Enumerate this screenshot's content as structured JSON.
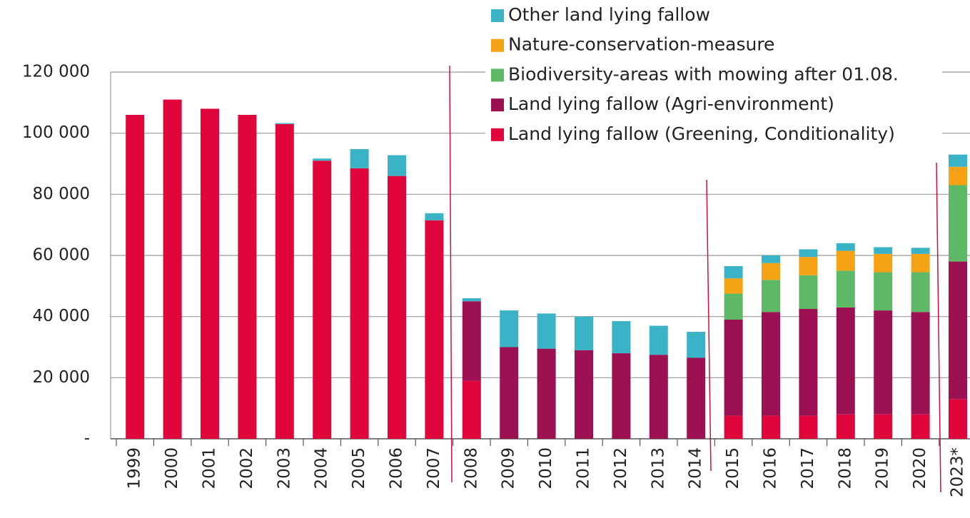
{
  "chart_data": {
    "type": "stacked_bar",
    "categories": [
      "1999",
      "2000",
      "2001",
      "2002",
      "2003",
      "2004",
      "2005",
      "2006",
      "2007",
      "2008",
      "2009",
      "2010",
      "2011",
      "2012",
      "2013",
      "2014",
      "2015",
      "2016",
      "2017",
      "2018",
      "2019",
      "2020",
      "2023*"
    ],
    "series": [
      {
        "name": "Land lying fallow (Greening, Conditionality)",
        "color": "#e0063c",
        "values": [
          106000,
          111000,
          108000,
          106000,
          103000,
          91000,
          88500,
          86000,
          71500,
          19000,
          0,
          0,
          0,
          0,
          0,
          0,
          7500,
          7500,
          7500,
          8000,
          8000,
          8000,
          13000
        ]
      },
      {
        "name": "Land lying fallow (Agri-environment)",
        "color": "#9b1152",
        "values": [
          0,
          0,
          0,
          0,
          0,
          0,
          0,
          0,
          0,
          26000,
          30000,
          29500,
          29000,
          28000,
          27500,
          26500,
          31500,
          34000,
          35000,
          35000,
          34000,
          33500,
          45000
        ]
      },
      {
        "name": "Biodiversity-areas with mowing after 01.08.",
        "color": "#5fb865",
        "values": [
          0,
          0,
          0,
          0,
          0,
          0,
          0,
          0,
          0,
          0,
          0,
          0,
          0,
          0,
          0,
          0,
          8500,
          10500,
          11000,
          12000,
          12500,
          13000,
          25000
        ]
      },
      {
        "name": "Nature-conservation-measure",
        "color": "#f5a214",
        "values": [
          0,
          0,
          0,
          0,
          0,
          0,
          0,
          0,
          0,
          0,
          0,
          0,
          0,
          0,
          0,
          0,
          5000,
          5500,
          6000,
          6500,
          6000,
          6000,
          6000
        ]
      },
      {
        "name": "Other land lying fallow",
        "color": "#3bb3c6",
        "values": [
          0,
          0,
          0,
          0,
          300,
          700,
          6300,
          6800,
          2300,
          1000,
          12000,
          11500,
          11000,
          10500,
          9500,
          8500,
          4000,
          2500,
          2500,
          2500,
          2200,
          2000,
          4000
        ]
      }
    ],
    "ylim": [
      0,
      120000
    ],
    "yticks": [
      {
        "value": 0,
        "label": "-"
      },
      {
        "value": 20000,
        "label": "20 000"
      },
      {
        "value": 40000,
        "label": "40 000"
      },
      {
        "value": 60000,
        "label": "60 000"
      },
      {
        "value": 80000,
        "label": "80 000"
      },
      {
        "value": 100000,
        "label": "100 000"
      },
      {
        "value": 120000,
        "label": "120 000"
      }
    ],
    "grid": true
  }
}
